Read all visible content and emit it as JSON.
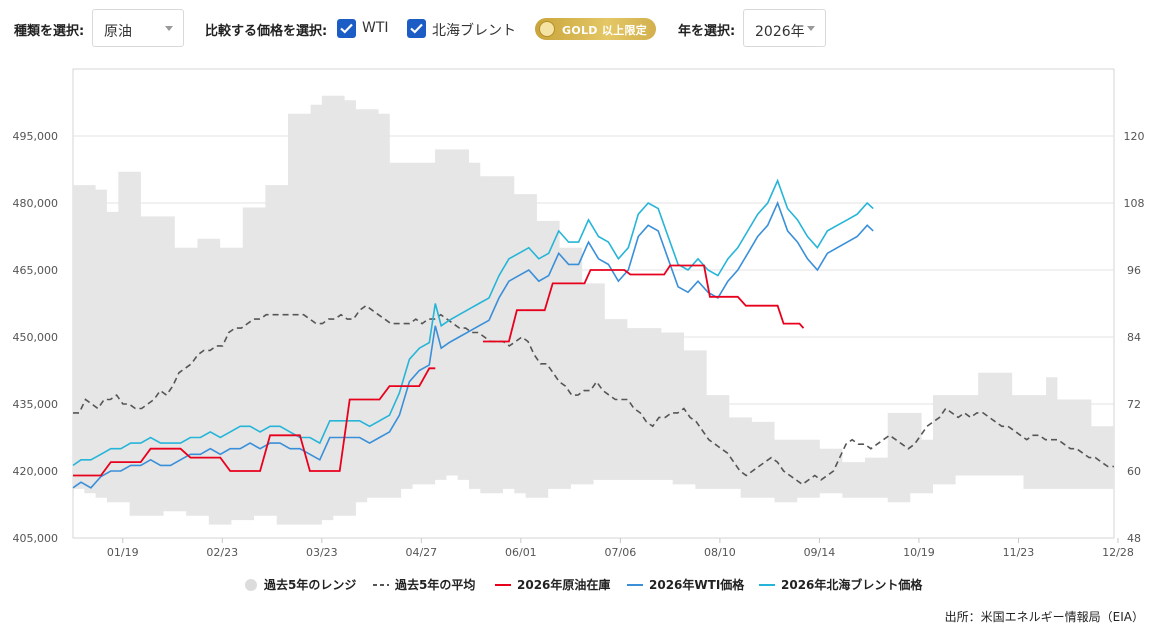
{
  "controls": {
    "type_label": "種類を選択:",
    "type_value": "原油",
    "compare_label": "比較する価格を選択:",
    "wti_label": "WTI",
    "brent_label": "北海ブレント",
    "gold_badge": "GOLD 以上限定",
    "year_label": "年を選択:",
    "year_value": "2026年"
  },
  "source": "出所：米国エネルギー情報局（EIA）",
  "chart_data": {
    "type": "line",
    "x_ticks": [
      "01/19",
      "02/23",
      "03/23",
      "04/27",
      "06/01",
      "07/06",
      "08/10",
      "09/14",
      "10/19",
      "11/23",
      "12/28"
    ],
    "y_left_ticks": [
      "405,000",
      "420,000",
      "435,000",
      "450,000",
      "465,000",
      "480,000",
      "495,000"
    ],
    "y_left_range": [
      405000,
      510000
    ],
    "y_right_ticks": [
      "48",
      "60",
      "72",
      "84",
      "96",
      "108",
      "120"
    ],
    "y_right_range": [
      48,
      132
    ],
    "legend": [
      "過去5年のレンジ",
      "過去5年の平均",
      "2026年原油在庫",
      "2026年WTI価格",
      "2026年北海ブレント価格"
    ],
    "week_range": [
      0.1,
      52.4
    ],
    "colors": {
      "range": "#e6e6e6",
      "avg": "#555555",
      "stock": "#e8001c",
      "wti": "#3a8fd9",
      "brent": "#26b5d8"
    },
    "range_high": [
      484,
      484,
      483,
      478,
      487,
      487,
      477,
      477,
      477,
      470,
      470,
      472,
      472,
      470,
      470,
      479,
      479,
      484,
      484,
      500,
      500,
      502,
      504,
      504,
      503,
      501,
      501,
      500,
      489,
      489,
      489,
      489,
      492,
      492,
      492,
      489,
      486,
      486,
      486,
      482,
      482,
      476,
      476,
      470,
      470,
      462,
      462,
      454,
      454,
      452,
      452,
      452,
      451,
      451,
      447,
      447,
      437,
      437,
      432,
      432,
      431,
      431,
      427,
      427,
      427,
      427,
      425,
      425,
      422,
      422,
      423,
      423,
      433,
      433,
      433,
      427,
      437,
      437,
      437,
      437,
      442,
      442,
      442,
      437,
      437,
      437,
      441,
      436,
      436,
      436,
      430,
      430,
      430
    ],
    "range_low": [
      416,
      415,
      414,
      413,
      413,
      410,
      410,
      410,
      411,
      411,
      410,
      410,
      408,
      408,
      409,
      409,
      410,
      410,
      408,
      408,
      408,
      408,
      409,
      410,
      410,
      413,
      414,
      414,
      414,
      416,
      417,
      417,
      418,
      419,
      418,
      416,
      415,
      415,
      416,
      415,
      414,
      414,
      416,
      416,
      417,
      417,
      418,
      418,
      418,
      418,
      418,
      418,
      418,
      417,
      417,
      416,
      416,
      416,
      416,
      414,
      414,
      414,
      413,
      413,
      414,
      414,
      415,
      415,
      414,
      414,
      414,
      414,
      413,
      413,
      415,
      415,
      417,
      417,
      419,
      419,
      419,
      419,
      419,
      419,
      416,
      416,
      416,
      416,
      416,
      416,
      416,
      416,
      416
    ],
    "avg": [
      433,
      433,
      436,
      435,
      434,
      436,
      436,
      437,
      435,
      435,
      434,
      434,
      435,
      436,
      438,
      437,
      439,
      442,
      443,
      444,
      446,
      447,
      447,
      448,
      448,
      451,
      452,
      452,
      453,
      454,
      454,
      455,
      455,
      455,
      455,
      455,
      455,
      455,
      454,
      453,
      453,
      454,
      454,
      455,
      454,
      454,
      456,
      457,
      456,
      455,
      454,
      453,
      453,
      453,
      453,
      454,
      453,
      454,
      454,
      455,
      454,
      453,
      452,
      452,
      451,
      451,
      450,
      449,
      449,
      449,
      448,
      449,
      450,
      449,
      446,
      444,
      444,
      442,
      440,
      439,
      437,
      437,
      438,
      438,
      440,
      438,
      437,
      436,
      436,
      436,
      434,
      433,
      431,
      430,
      432,
      432,
      433,
      433,
      434,
      432,
      431,
      429,
      427,
      426,
      425,
      424,
      422,
      420,
      419,
      420,
      421,
      422,
      423,
      422,
      420,
      419,
      418,
      417,
      418,
      419,
      418,
      419,
      420,
      423,
      426,
      427,
      426,
      426,
      425,
      426,
      427,
      428,
      427,
      426,
      425,
      426,
      428,
      430,
      431,
      432,
      434,
      433,
      432,
      433,
      432,
      433,
      433,
      432,
      431,
      430,
      430,
      429,
      428,
      427,
      428,
      428,
      427,
      427,
      427,
      426,
      425,
      425,
      424,
      423,
      423,
      422,
      421,
      421
    ],
    "stock": [
      [
        0.1,
        419
      ],
      [
        1.0,
        419
      ],
      [
        1.5,
        419
      ],
      [
        2.0,
        422
      ],
      [
        3.0,
        422
      ],
      [
        3.5,
        422
      ],
      [
        4.0,
        425
      ],
      [
        5.0,
        425
      ],
      [
        5.5,
        425
      ],
      [
        6.0,
        423
      ],
      [
        7.0,
        423
      ],
      [
        7.5,
        423
      ],
      [
        8.0,
        420
      ],
      [
        9.0,
        420
      ],
      [
        9.5,
        420
      ],
      [
        10.0,
        428
      ],
      [
        11.0,
        428
      ],
      [
        11.5,
        428
      ],
      [
        12.0,
        420
      ],
      [
        13.0,
        420
      ],
      [
        13.5,
        420
      ],
      [
        14.0,
        436
      ],
      [
        15.0,
        436
      ],
      [
        15.5,
        436
      ],
      [
        16.0,
        439
      ],
      [
        17.0,
        439
      ],
      [
        17.5,
        439
      ],
      [
        18.0,
        443
      ],
      [
        18.3,
        443
      ]
    ],
    "stock2": [
      [
        20.7,
        449
      ],
      [
        21.5,
        449
      ],
      [
        22.0,
        449
      ],
      [
        22.4,
        456
      ],
      [
        23.5,
        456
      ],
      [
        23.8,
        456
      ],
      [
        24.2,
        462
      ],
      [
        25.5,
        462
      ],
      [
        25.8,
        462
      ],
      [
        26.1,
        465
      ],
      [
        27.5,
        465
      ],
      [
        27.8,
        465
      ],
      [
        28.1,
        464
      ],
      [
        29.5,
        464
      ],
      [
        29.8,
        464
      ],
      [
        30.1,
        466
      ],
      [
        31.5,
        466
      ],
      [
        31.8,
        466
      ],
      [
        32.1,
        459
      ],
      [
        33.0,
        459
      ],
      [
        33.5,
        459
      ],
      [
        33.9,
        457
      ],
      [
        35.0,
        457
      ],
      [
        35.5,
        457
      ],
      [
        35.8,
        453
      ],
      [
        36.6,
        453
      ],
      [
        36.8,
        452
      ]
    ],
    "wti": [
      [
        0.1,
        57
      ],
      [
        0.5,
        58
      ],
      [
        1.0,
        57
      ],
      [
        1.5,
        59
      ],
      [
        2.0,
        60
      ],
      [
        2.5,
        60
      ],
      [
        3.0,
        61
      ],
      [
        3.5,
        61
      ],
      [
        4.0,
        62
      ],
      [
        4.5,
        61
      ],
      [
        5.0,
        61
      ],
      [
        5.5,
        62
      ],
      [
        6.0,
        63
      ],
      [
        6.5,
        63
      ],
      [
        7.0,
        64
      ],
      [
        7.5,
        63
      ],
      [
        8.0,
        64
      ],
      [
        8.5,
        64
      ],
      [
        9.0,
        65
      ],
      [
        9.5,
        64
      ],
      [
        10.0,
        65
      ],
      [
        10.5,
        65
      ],
      [
        11.0,
        64
      ],
      [
        11.5,
        64
      ],
      [
        12.0,
        63
      ],
      [
        12.5,
        62
      ],
      [
        13.0,
        66
      ],
      [
        13.5,
        66
      ],
      [
        14.0,
        66
      ],
      [
        14.5,
        66
      ],
      [
        15.0,
        65
      ],
      [
        15.5,
        66
      ],
      [
        16.0,
        67
      ],
      [
        16.5,
        70
      ],
      [
        17.0,
        76
      ],
      [
        17.5,
        78
      ],
      [
        18.0,
        79
      ],
      [
        18.3,
        86
      ],
      [
        18.6,
        82
      ],
      [
        19.0,
        83
      ],
      [
        19.5,
        84
      ],
      [
        20.0,
        85
      ],
      [
        20.5,
        86
      ],
      [
        21.0,
        87
      ],
      [
        21.5,
        91
      ],
      [
        22.0,
        94
      ],
      [
        22.5,
        95
      ],
      [
        23.0,
        96
      ],
      [
        23.5,
        94
      ],
      [
        24.0,
        95
      ],
      [
        24.5,
        99
      ],
      [
        25.0,
        97
      ],
      [
        25.5,
        97
      ],
      [
        26.0,
        101
      ],
      [
        26.5,
        98
      ],
      [
        27.0,
        97
      ],
      [
        27.5,
        94
      ],
      [
        28.0,
        96
      ],
      [
        28.5,
        102
      ],
      [
        29.0,
        104
      ],
      [
        29.5,
        103
      ],
      [
        30.0,
        98
      ],
      [
        30.5,
        93
      ],
      [
        31.0,
        92
      ],
      [
        31.5,
        94
      ],
      [
        32.0,
        92
      ],
      [
        32.5,
        91
      ],
      [
        33.0,
        94
      ],
      [
        33.5,
        96
      ],
      [
        34.0,
        99
      ],
      [
        34.5,
        102
      ],
      [
        35.0,
        104
      ],
      [
        35.5,
        108
      ],
      [
        36.0,
        103
      ],
      [
        36.5,
        101
      ],
      [
        37.0,
        98
      ],
      [
        37.5,
        96
      ],
      [
        38.0,
        99
      ],
      [
        38.5,
        100
      ],
      [
        39.0,
        101
      ],
      [
        39.5,
        102
      ],
      [
        40.0,
        104
      ],
      [
        40.3,
        103
      ]
    ],
    "brent": [
      [
        0.1,
        61
      ],
      [
        0.5,
        62
      ],
      [
        1.0,
        62
      ],
      [
        1.5,
        63
      ],
      [
        2.0,
        64
      ],
      [
        2.5,
        64
      ],
      [
        3.0,
        65
      ],
      [
        3.5,
        65
      ],
      [
        4.0,
        66
      ],
      [
        4.5,
        65
      ],
      [
        5.0,
        65
      ],
      [
        5.5,
        65
      ],
      [
        6.0,
        66
      ],
      [
        6.5,
        66
      ],
      [
        7.0,
        67
      ],
      [
        7.5,
        66
      ],
      [
        8.0,
        67
      ],
      [
        8.5,
        68
      ],
      [
        9.0,
        68
      ],
      [
        9.5,
        67
      ],
      [
        10.0,
        68
      ],
      [
        10.5,
        68
      ],
      [
        11.0,
        67
      ],
      [
        11.5,
        66
      ],
      [
        12.0,
        66
      ],
      [
        12.5,
        65
      ],
      [
        13.0,
        69
      ],
      [
        13.5,
        69
      ],
      [
        14.0,
        69
      ],
      [
        14.5,
        69
      ],
      [
        15.0,
        68
      ],
      [
        15.5,
        69
      ],
      [
        16.0,
        70
      ],
      [
        16.5,
        74
      ],
      [
        17.0,
        80
      ],
      [
        17.5,
        82
      ],
      [
        18.0,
        83
      ],
      [
        18.3,
        90
      ],
      [
        18.6,
        86
      ],
      [
        19.0,
        87
      ],
      [
        19.5,
        88
      ],
      [
        20.0,
        89
      ],
      [
        20.5,
        90
      ],
      [
        21.0,
        91
      ],
      [
        21.5,
        95
      ],
      [
        22.0,
        98
      ],
      [
        22.5,
        99
      ],
      [
        23.0,
        100
      ],
      [
        23.5,
        98
      ],
      [
        24.0,
        99
      ],
      [
        24.5,
        103
      ],
      [
        25.0,
        101
      ],
      [
        25.5,
        101
      ],
      [
        26.0,
        105
      ],
      [
        26.5,
        102
      ],
      [
        27.0,
        101
      ],
      [
        27.5,
        98
      ],
      [
        28.0,
        100
      ],
      [
        28.5,
        106
      ],
      [
        29.0,
        108
      ],
      [
        29.5,
        107
      ],
      [
        30.0,
        102
      ],
      [
        30.5,
        97
      ],
      [
        31.0,
        96
      ],
      [
        31.5,
        98
      ],
      [
        32.0,
        96
      ],
      [
        32.5,
        95
      ],
      [
        33.0,
        98
      ],
      [
        33.5,
        100
      ],
      [
        34.0,
        103
      ],
      [
        34.5,
        106
      ],
      [
        35.0,
        108
      ],
      [
        35.5,
        112
      ],
      [
        36.0,
        107
      ],
      [
        36.5,
        105
      ],
      [
        37.0,
        102
      ],
      [
        37.5,
        100
      ],
      [
        38.0,
        103
      ],
      [
        38.5,
        104
      ],
      [
        39.0,
        105
      ],
      [
        39.5,
        106
      ],
      [
        40.0,
        108
      ],
      [
        40.3,
        107
      ]
    ]
  }
}
